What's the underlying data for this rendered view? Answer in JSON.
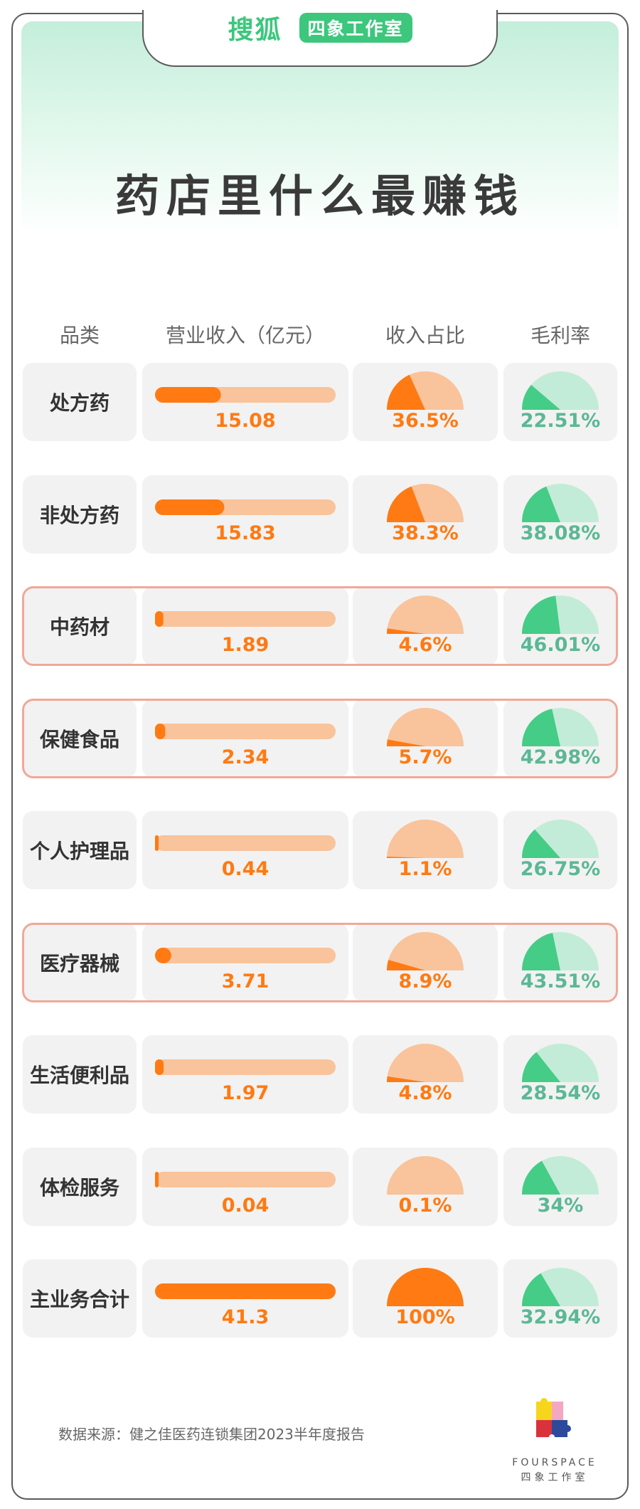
{
  "brand": {
    "sohu": "搜狐",
    "studio": "四象工作室"
  },
  "title": "药店里什么最赚钱",
  "headers": {
    "category": "品类",
    "revenue": "营业收入（亿元）",
    "share": "收入占比",
    "margin": "毛利率"
  },
  "chart_data": {
    "type": "table",
    "columns": [
      "品类",
      "营业收入（亿元）",
      "收入占比",
      "毛利率"
    ],
    "revenue_max": 41.3,
    "rows": [
      {
        "category": "处方药",
        "revenue": 15.08,
        "revenue_label": "15.08",
        "share": 36.5,
        "share_label": "36.5%",
        "margin": 22.51,
        "margin_label": "22.51%",
        "highlight": false
      },
      {
        "category": "非处方药",
        "revenue": 15.83,
        "revenue_label": "15.83",
        "share": 38.3,
        "share_label": "38.3%",
        "margin": 38.08,
        "margin_label": "38.08%",
        "highlight": false
      },
      {
        "category": "中药材",
        "revenue": 1.89,
        "revenue_label": "1.89",
        "share": 4.6,
        "share_label": "4.6%",
        "margin": 46.01,
        "margin_label": "46.01%",
        "highlight": true
      },
      {
        "category": "保健食品",
        "revenue": 2.34,
        "revenue_label": "2.34",
        "share": 5.7,
        "share_label": "5.7%",
        "margin": 42.98,
        "margin_label": "42.98%",
        "highlight": true
      },
      {
        "category": "个人护理品",
        "revenue": 0.44,
        "revenue_label": "0.44",
        "share": 1.1,
        "share_label": "1.1%",
        "margin": 26.75,
        "margin_label": "26.75%",
        "highlight": false
      },
      {
        "category": "医疗器械",
        "revenue": 3.71,
        "revenue_label": "3.71",
        "share": 8.9,
        "share_label": "8.9%",
        "margin": 43.51,
        "margin_label": "43.51%",
        "highlight": true
      },
      {
        "category": "生活便利品",
        "revenue": 1.97,
        "revenue_label": "1.97",
        "share": 4.8,
        "share_label": "4.8%",
        "margin": 28.54,
        "margin_label": "28.54%",
        "highlight": false
      },
      {
        "category": "体检服务",
        "revenue": 0.04,
        "revenue_label": "0.04",
        "share": 0.1,
        "share_label": "0.1%",
        "margin": 34,
        "margin_label": "34%",
        "highlight": false
      },
      {
        "category": "主业务合计",
        "revenue": 41.3,
        "revenue_label": "41.3",
        "share": 100,
        "share_label": "100%",
        "margin": 32.94,
        "margin_label": "32.94%",
        "highlight": false
      }
    ]
  },
  "colors": {
    "orange": "#ff7a12",
    "orange_light": "#f9c39b",
    "green": "#45cc86",
    "green_light": "#c2ecd7",
    "green_text": "#5bb894",
    "highlight_border": "#f1a898",
    "cell_bg": "#f2f2f2"
  },
  "footer": {
    "source": "数据来源：健之佳医药连锁集团2023半年度报告"
  },
  "logo": {
    "name": "FOURSPACE",
    "subtitle": "四象工作室"
  }
}
